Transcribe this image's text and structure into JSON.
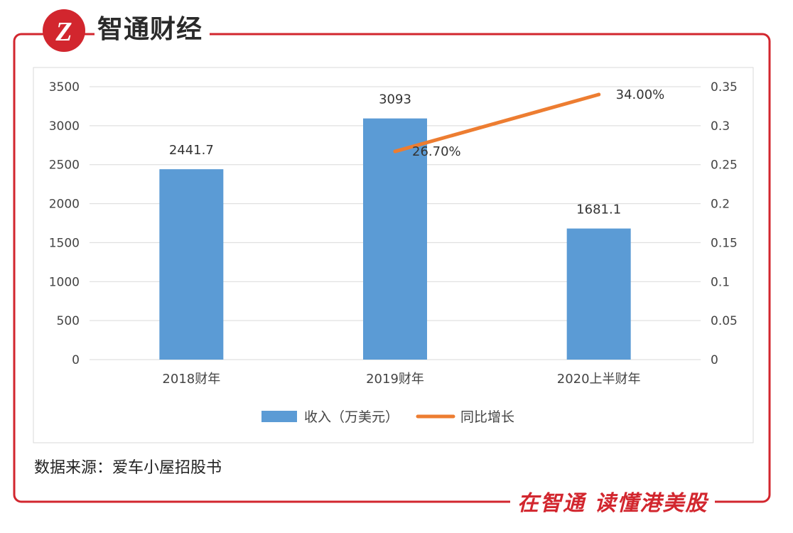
{
  "brand": {
    "logo_text": "智通财经",
    "logo_glyph": "Z",
    "slogan": "在智通 读懂港美股",
    "accent_color": "#d2262e"
  },
  "source_text": "数据来源：爱车小屋招股书",
  "chart_data": {
    "type": "bar",
    "categories": [
      "2018财年",
      "2019财年",
      "2020上半财年"
    ],
    "series": [
      {
        "name": "收入（万美元）",
        "type": "bar",
        "axis": "left",
        "color": "#5b9bd5",
        "values": [
          2441.7,
          3093,
          1681.1
        ],
        "labels": [
          "2441.7",
          "3093",
          "1681.1"
        ]
      },
      {
        "name": "同比增长",
        "type": "line",
        "axis": "right",
        "color": "#ed7d31",
        "values": [
          null,
          0.267,
          0.34
        ],
        "labels": [
          "",
          "26.70%",
          "34.00%"
        ]
      }
    ],
    "y_left": {
      "ylim": [
        0,
        3500
      ],
      "ticks": [
        "0",
        "500",
        "1000",
        "1500",
        "2000",
        "2500",
        "3000",
        "3500"
      ]
    },
    "y_right": {
      "ylim": [
        0,
        0.35
      ],
      "ticks": [
        "0",
        "0.05",
        "0.1",
        "0.15",
        "0.2",
        "0.25",
        "0.3",
        "0.35"
      ]
    },
    "grid": true,
    "legend": "bottom"
  }
}
